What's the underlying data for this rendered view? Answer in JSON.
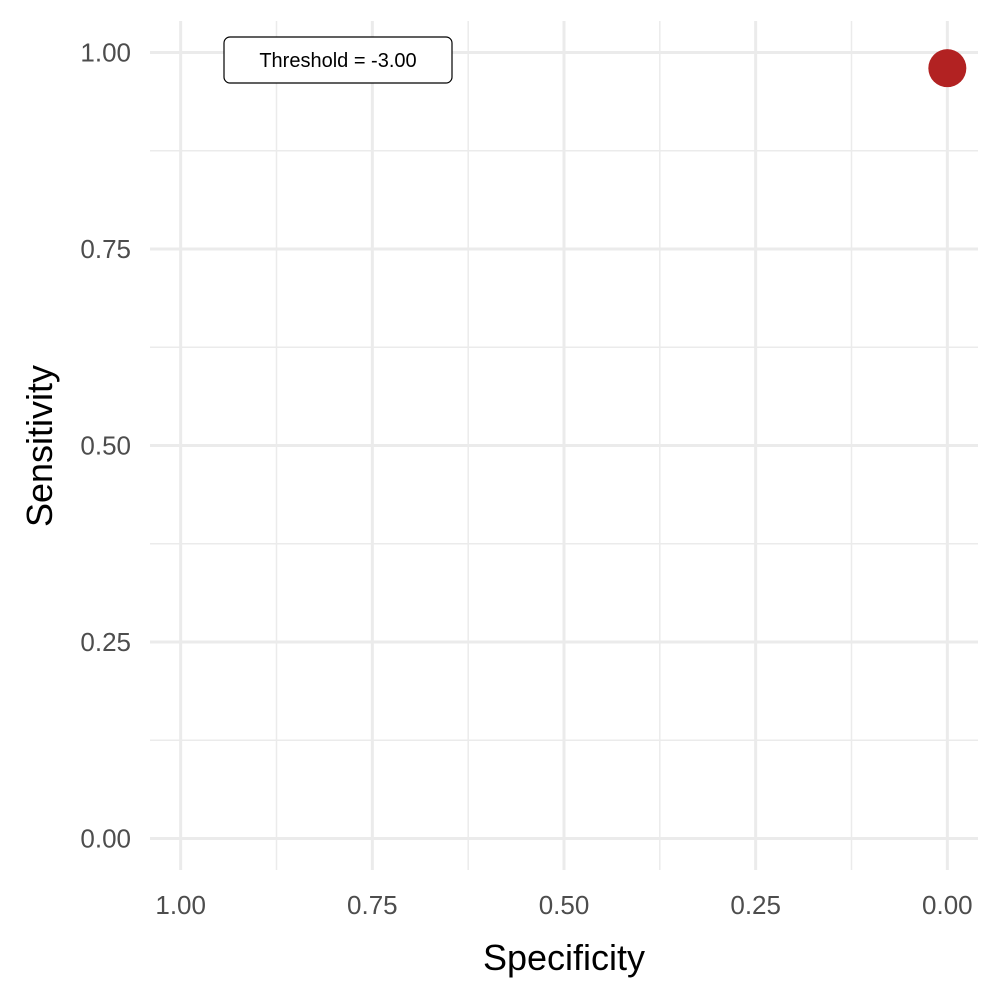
{
  "chart_data": {
    "type": "scatter",
    "title": "",
    "xlabel": "Specificity",
    "ylabel": "Sensitivity",
    "x_reversed": true,
    "xlim": [
      1.04,
      -0.04
    ],
    "ylim": [
      -0.04,
      1.04
    ],
    "x_ticks": [
      1.0,
      0.75,
      0.5,
      0.25,
      0.0
    ],
    "x_tick_labels": [
      "1.00",
      "0.75",
      "0.50",
      "0.25",
      "0.00"
    ],
    "y_ticks": [
      0.0,
      0.25,
      0.5,
      0.75,
      1.0
    ],
    "y_tick_labels": [
      "0.00",
      "0.25",
      "0.50",
      "0.75",
      "1.00"
    ],
    "grid": true,
    "points": [
      {
        "x": 0.0,
        "y": 0.98
      }
    ],
    "point_color": "#b22222",
    "annotation": "Threshold =  -3.00"
  }
}
